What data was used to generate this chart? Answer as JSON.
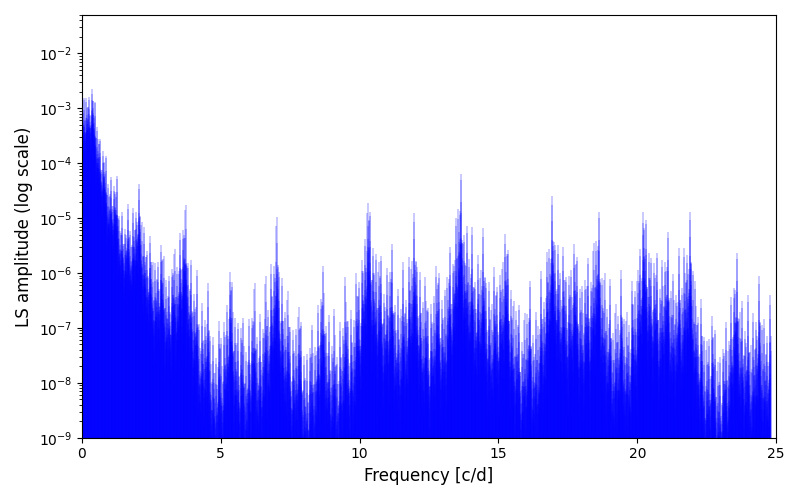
{
  "xlabel": "Frequency [c/d]",
  "ylabel": "LS amplitude (log scale)",
  "xlim": [
    0,
    25
  ],
  "ylim": [
    1e-09,
    0.05
  ],
  "line_color": "#0000ff",
  "line_width": 0.3,
  "figsize": [
    8.0,
    5.0
  ],
  "dpi": 100,
  "freq_max": 24.8,
  "n_points": 6000,
  "seed": 7,
  "background_color": "#ffffff"
}
